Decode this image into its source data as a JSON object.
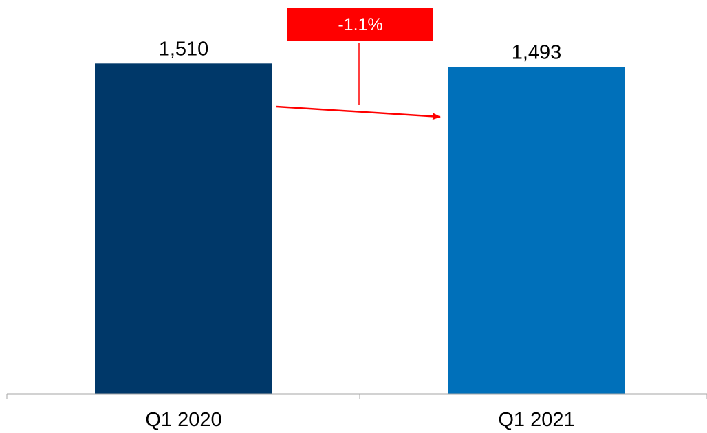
{
  "chart_data": {
    "type": "bar",
    "categories": [
      "Q1 2020",
      "Q1 2021"
    ],
    "values": [
      1510,
      1493
    ],
    "value_labels": [
      "1,510",
      "1,493"
    ],
    "bar_colors": [
      "#003869",
      "#0070BA"
    ],
    "ylim": [
      0,
      1800
    ],
    "grid": false,
    "annotation": {
      "label": "-1.1%",
      "color": "#FF0000",
      "text_color": "#FFFFFF"
    },
    "axis_color": "#A6A6A6",
    "text_color": "#000000"
  }
}
